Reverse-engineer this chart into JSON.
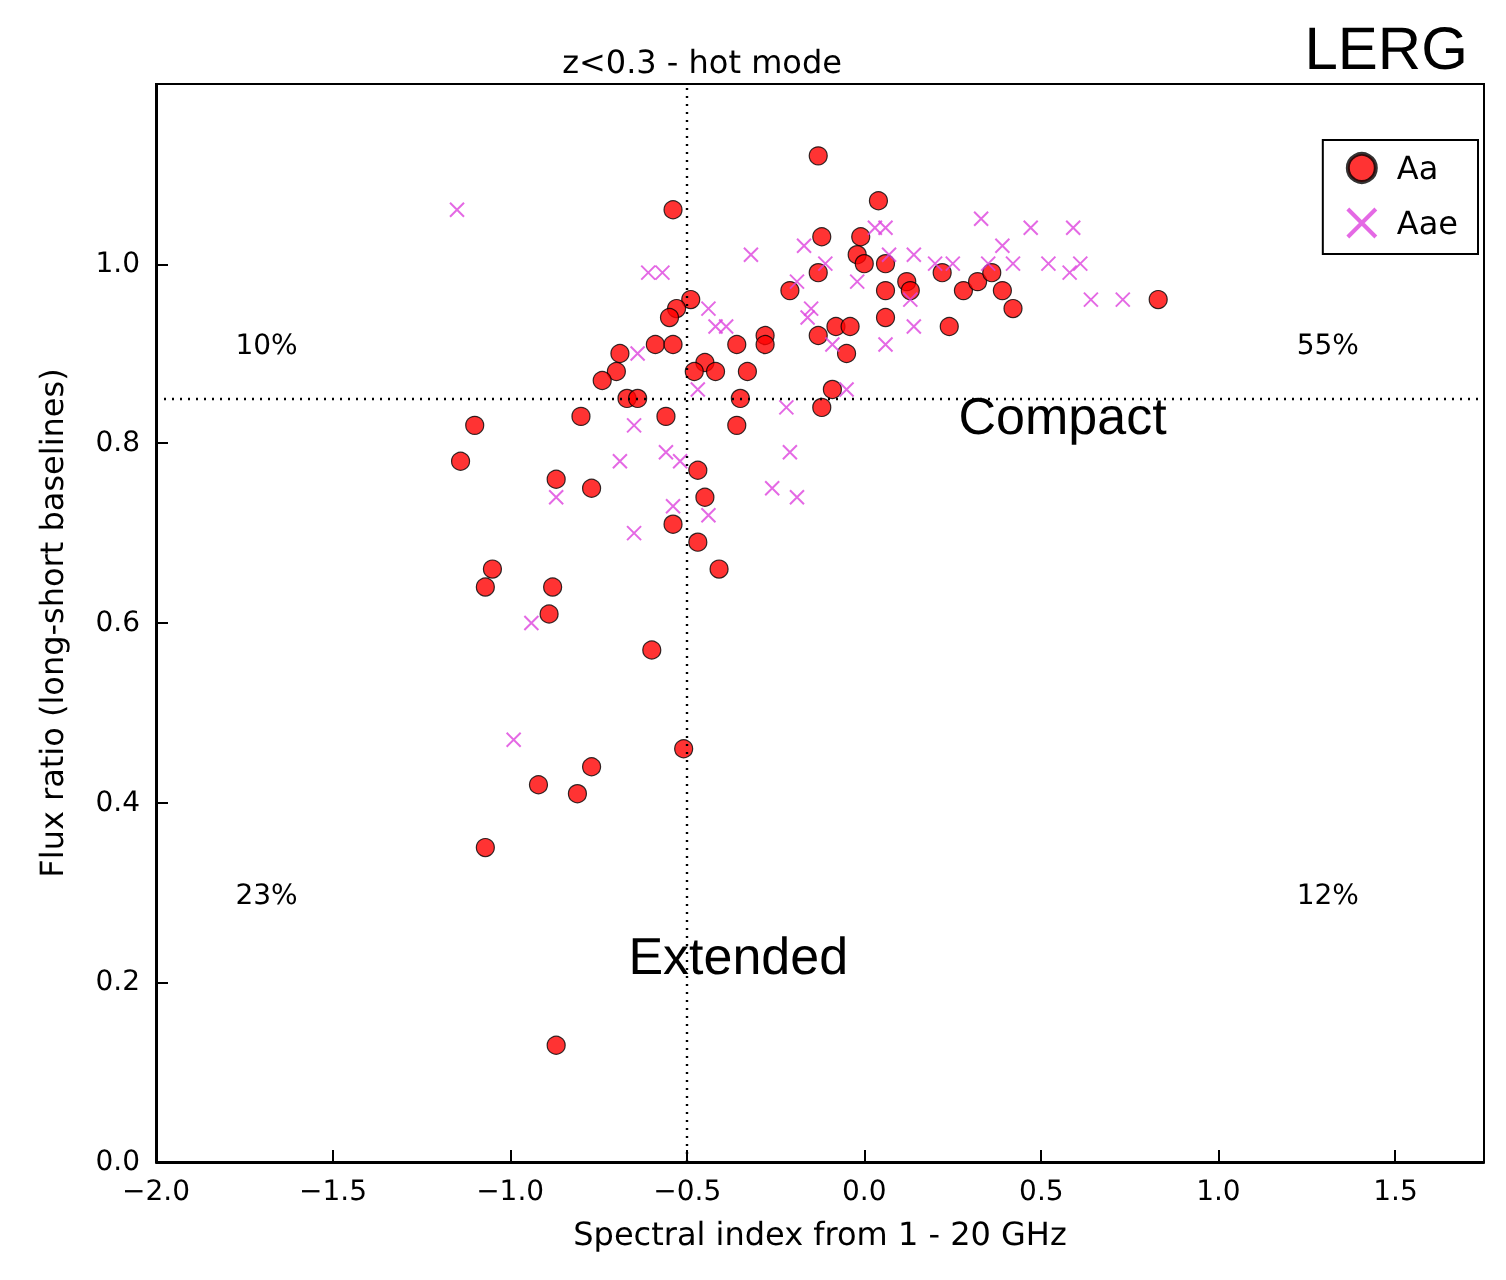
{
  "chart_data": {
    "type": "scatter",
    "title": "z<0.3 - hot mode",
    "xlabel": "Spectral index from 1 - 20 GHz",
    "ylabel": "Flux ratio (long-short baselines)",
    "xlim": [
      -2.0,
      1.75
    ],
    "ylim": [
      0,
      1.2
    ],
    "xticks": [
      {
        "value": -2,
        "label": "−2.0"
      },
      {
        "value": -1.5,
        "label": "−1.5"
      },
      {
        "value": -1,
        "label": "−1.0"
      },
      {
        "value": -0.5,
        "label": "−0.5"
      },
      {
        "value": 0,
        "label": "0.0"
      },
      {
        "value": 0.5,
        "label": "0.5"
      },
      {
        "value": 1,
        "label": "1.0"
      },
      {
        "value": 1.5,
        "label": "1.5"
      }
    ],
    "yticks": [
      {
        "value": 0,
        "label": "0.0"
      },
      {
        "value": 0.2,
        "label": "0.2"
      },
      {
        "value": 0.4,
        "label": "0.4"
      },
      {
        "value": 0.6,
        "label": "0.6"
      },
      {
        "value": 0.8,
        "label": "0.8"
      },
      {
        "value": 1,
        "label": "1.0"
      }
    ],
    "grid": false,
    "legend": "top right",
    "series": [
      {
        "name": "Aa",
        "color": "#ff0000",
        "marker": "circle",
        "x": [
          -0.54,
          0.04,
          -0.12,
          -0.01,
          -0.02,
          0.0,
          0.06,
          -0.13,
          -0.21,
          0.06,
          0.06,
          -0.13,
          -0.08,
          -0.04,
          -0.05,
          -0.09,
          -0.12,
          -0.49,
          -0.53,
          -0.55,
          -0.59,
          -0.54,
          -0.69,
          -0.7,
          -0.74,
          -0.67,
          -0.64,
          -0.8,
          -0.56,
          -0.45,
          -0.48,
          -0.42,
          -0.36,
          -0.33,
          -0.28,
          -0.28,
          -0.35,
          -0.36,
          -1.1,
          -1.14,
          -0.47,
          -0.87,
          -0.77,
          -0.45,
          -0.54,
          -0.47,
          -0.41,
          -1.05,
          -1.07,
          -0.88,
          -0.89,
          -0.6,
          -0.51,
          -0.77,
          -0.92,
          -0.81,
          -1.07,
          -0.87,
          -0.13,
          0.12,
          0.13,
          0.24,
          0.22,
          0.28,
          0.32,
          0.36,
          0.39,
          0.42,
          0.83
        ],
        "values": [
          1.06,
          1.07,
          1.03,
          1.03,
          1.01,
          1.0,
          1.0,
          0.99,
          0.97,
          0.97,
          0.94,
          0.92,
          0.93,
          0.93,
          0.9,
          0.86,
          0.84,
          0.96,
          0.95,
          0.94,
          0.91,
          0.91,
          0.9,
          0.88,
          0.87,
          0.85,
          0.85,
          0.83,
          0.83,
          0.89,
          0.88,
          0.88,
          0.91,
          0.88,
          0.92,
          0.91,
          0.85,
          0.82,
          0.82,
          0.78,
          0.77,
          0.76,
          0.75,
          0.74,
          0.71,
          0.69,
          0.66,
          0.66,
          0.64,
          0.64,
          0.61,
          0.57,
          0.46,
          0.44,
          0.42,
          0.41,
          0.35,
          0.13,
          1.12,
          0.98,
          0.97,
          0.93,
          0.99,
          0.97,
          0.98,
          0.99,
          0.97,
          0.95,
          0.96
        ]
      },
      {
        "name": "Aae",
        "color": "#dd44dd",
        "marker": "cross",
        "x": [
          -1.15,
          -0.61,
          -0.57,
          -0.32,
          -0.17,
          -0.19,
          -0.15,
          -0.16,
          -0.11,
          -0.02,
          0.06,
          -0.44,
          -0.42,
          -0.39,
          -0.64,
          -0.47,
          -0.22,
          -0.05,
          -0.09,
          0.06,
          -0.65,
          -0.69,
          -0.56,
          -0.52,
          -0.21,
          -0.26,
          -0.19,
          -0.87,
          -0.54,
          -0.44,
          -0.65,
          -0.94,
          -0.99,
          0.33,
          0.47,
          0.59,
          0.03,
          0.39,
          0.14,
          0.07,
          0.2,
          0.25,
          0.35,
          0.42,
          0.52,
          0.61,
          0.58,
          0.13,
          0.64,
          0.73,
          0.14
        ],
        "values": [
          1.06,
          0.99,
          0.99,
          1.01,
          1.02,
          0.98,
          0.95,
          0.94,
          1.0,
          0.98,
          1.04,
          0.95,
          0.93,
          0.93,
          0.9,
          0.86,
          0.84,
          0.86,
          0.91,
          0.91,
          0.82,
          0.78,
          0.79,
          0.78,
          0.79,
          0.75,
          0.74,
          0.74,
          0.73,
          0.72,
          0.7,
          0.6,
          0.47,
          1.05,
          1.04,
          1.04,
          1.04,
          1.02,
          1.01,
          1.01,
          1.0,
          1.0,
          1.0,
          1.0,
          1.0,
          1.0,
          0.99,
          0.96,
          0.96,
          0.96,
          0.93
        ]
      }
    ],
    "ref_lines": [
      {
        "axis": "x",
        "value": -0.5,
        "color": "#000000",
        "line_style": "dotted"
      },
      {
        "axis": "y",
        "value": 0.85,
        "color": "#000000",
        "line_style": "dotted"
      }
    ],
    "annotations": [
      "LERG",
      "10%",
      "55%",
      "23%",
      "12%",
      "Compact",
      "Extended"
    ]
  }
}
